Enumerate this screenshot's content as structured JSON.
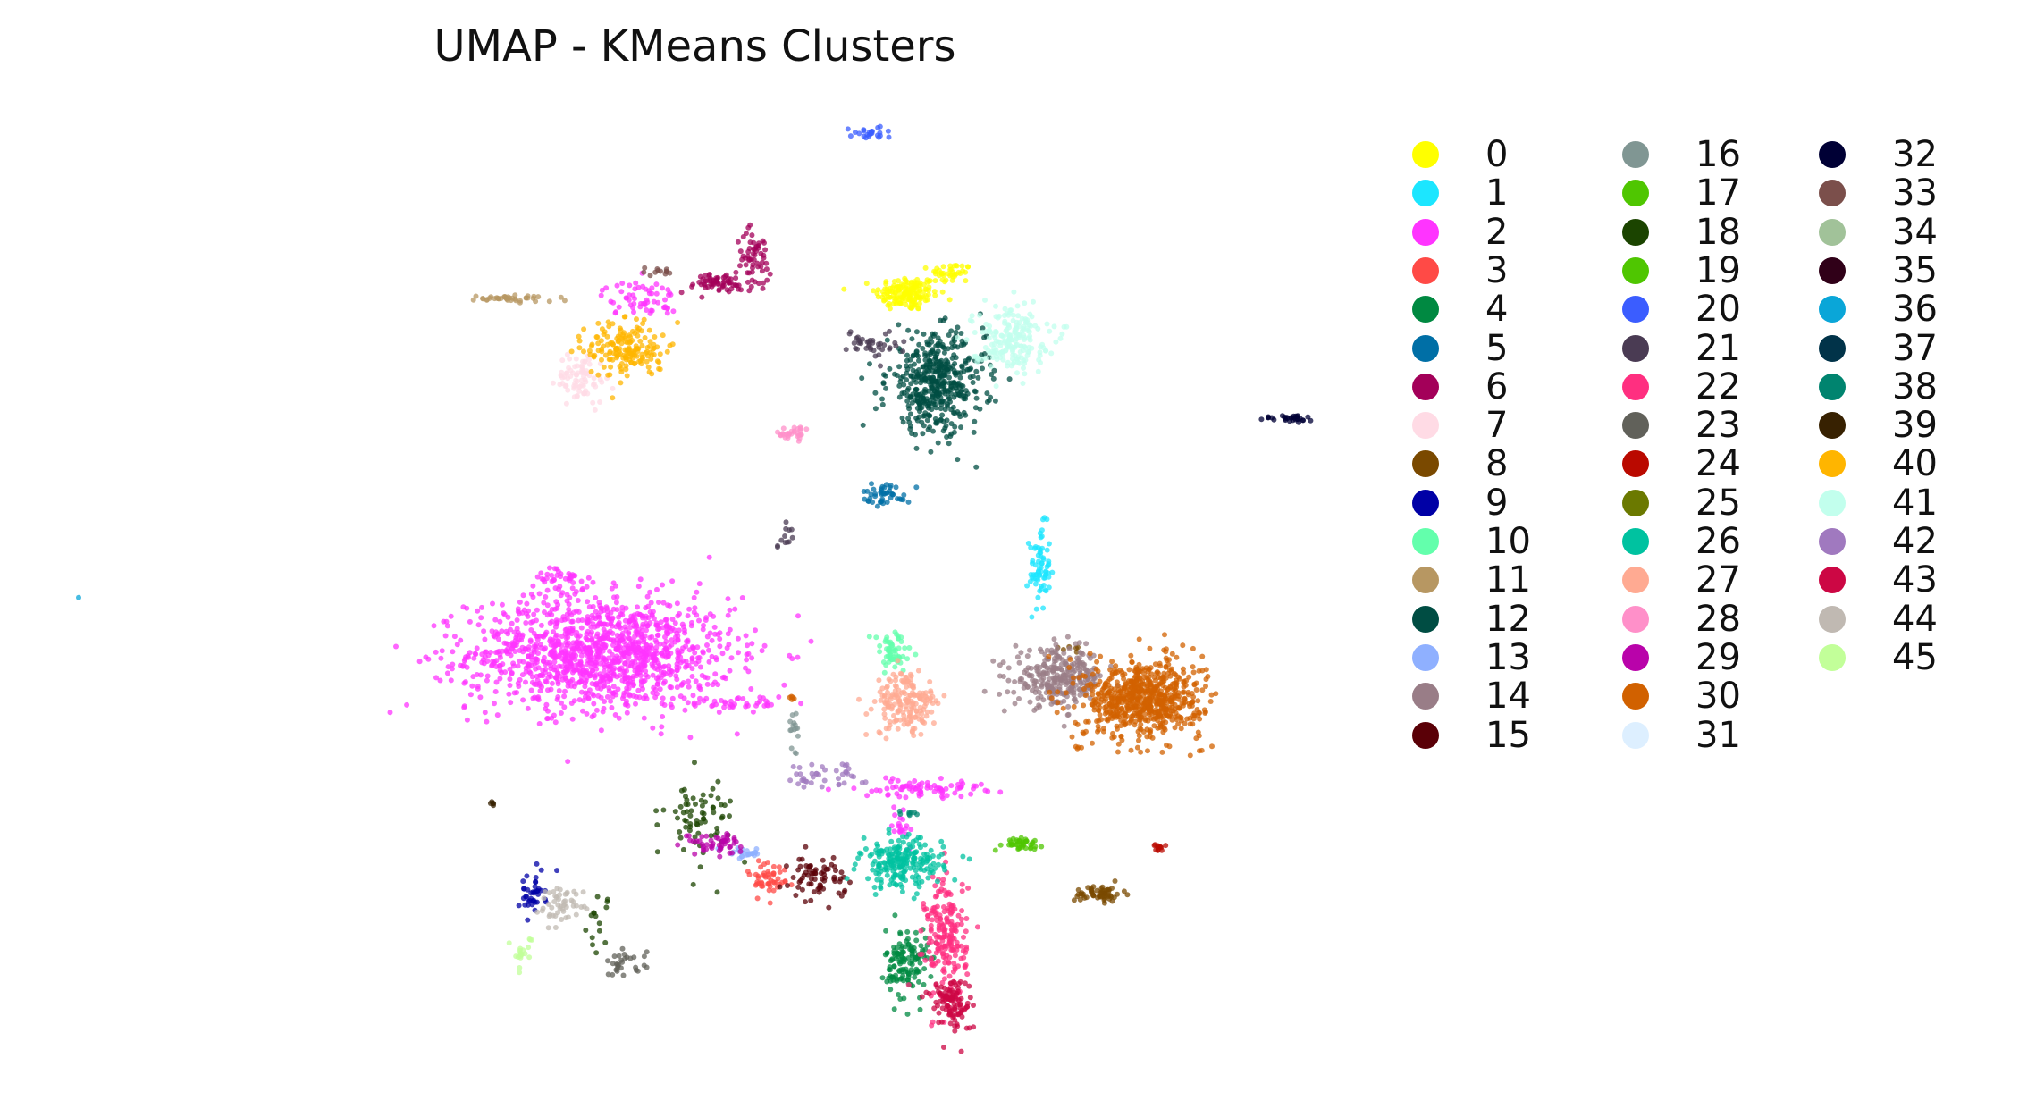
{
  "chart_data": {
    "type": "scatter",
    "title": "UMAP - KMeans Clusters",
    "xlabel": "",
    "ylabel": "",
    "axes_visible": false,
    "grid": false,
    "legend_position": "right",
    "legend_columns": 3,
    "series": [
      {
        "name": "0",
        "color": "#ffff00",
        "blobs": [
          [
            -0.2,
            6.2,
            0.45,
            0.25,
            160
          ],
          [
            0.7,
            6.6,
            0.3,
            0.15,
            40
          ]
        ]
      },
      {
        "name": "1",
        "color": "#1ce6ff",
        "blobs": [
          [
            2.5,
            0.7,
            0.15,
            0.6,
            70
          ]
        ]
      },
      {
        "name": "2",
        "color": "#ff34ff",
        "blobs": [
          [
            -6.4,
            -1.0,
            1.9,
            0.8,
            1300
          ],
          [
            -7.2,
            0.5,
            0.4,
            0.2,
            40
          ],
          [
            -3.6,
            -2.0,
            0.7,
            0.1,
            40
          ],
          [
            0.1,
            -3.7,
            0.9,
            0.12,
            80
          ],
          [
            -0.3,
            -4.4,
            0.15,
            0.3,
            20
          ],
          [
            -5.6,
            6.1,
            0.55,
            0.25,
            60
          ]
        ]
      },
      {
        "name": "3",
        "color": "#ff4a46",
        "blobs": [
          [
            -3.0,
            -5.5,
            0.3,
            0.3,
            50
          ]
        ]
      },
      {
        "name": "4",
        "color": "#008941",
        "blobs": [
          [
            -0.2,
            -7.2,
            0.3,
            0.5,
            140
          ]
        ]
      },
      {
        "name": "5",
        "color": "#006fa6",
        "blobs": [
          [
            -0.6,
            2.2,
            0.35,
            0.15,
            45
          ]
        ]
      },
      {
        "name": "6",
        "color": "#a30059",
        "blobs": [
          [
            -4.1,
            6.4,
            0.55,
            0.15,
            60
          ],
          [
            -3.3,
            6.9,
            0.25,
            0.4,
            60
          ]
        ]
      },
      {
        "name": "7",
        "color": "#ffdbe5",
        "blobs": [
          [
            -6.8,
            4.5,
            0.35,
            0.35,
            80
          ]
        ]
      },
      {
        "name": "8",
        "color": "#7a4900",
        "blobs": [
          [
            3.7,
            -5.8,
            0.35,
            0.12,
            60
          ],
          [
            3.2,
            -0.9,
            0.15,
            0.05,
            6
          ]
        ]
      },
      {
        "name": "9",
        "color": "#0000a6",
        "blobs": [
          [
            -7.8,
            -5.8,
            0.2,
            0.3,
            40
          ]
        ]
      },
      {
        "name": "10",
        "color": "#63ffac",
        "blobs": [
          [
            -0.5,
            -1.0,
            0.3,
            0.3,
            60
          ]
        ]
      },
      {
        "name": "11",
        "color": "#b79762",
        "blobs": [
          [
            -8.2,
            6.1,
            0.6,
            0.05,
            40
          ]
        ]
      },
      {
        "name": "12",
        "color": "#004d43",
        "blobs": [
          [
            0.4,
            4.4,
            0.7,
            0.7,
            450
          ]
        ]
      },
      {
        "name": "13",
        "color": "#8fb0ff",
        "blobs": [
          [
            -3.5,
            -5.0,
            0.25,
            0.08,
            25
          ]
        ]
      },
      {
        "name": "14",
        "color": "#997d87",
        "blobs": [
          [
            2.9,
            -1.5,
            0.65,
            0.4,
            300
          ]
        ]
      },
      {
        "name": "15",
        "color": "#5a0007",
        "blobs": [
          [
            -2.0,
            -5.5,
            0.4,
            0.3,
            70
          ]
        ]
      },
      {
        "name": "16",
        "color": "#809693",
        "blobs": [
          [
            -2.5,
            -2.5,
            0.08,
            0.3,
            15
          ]
        ]
      },
      {
        "name": "17",
        "color": "#4fc601",
        "blobs": []
      },
      {
        "name": "18",
        "color": "#1b4400",
        "blobs": [
          [
            -4.4,
            -4.3,
            0.5,
            0.6,
            70
          ],
          [
            -6.5,
            -6.3,
            0.2,
            0.4,
            15
          ]
        ]
      },
      {
        "name": "19",
        "color": "#4fc601",
        "blobs": [
          [
            2.1,
            -4.8,
            0.3,
            0.08,
            40
          ]
        ]
      },
      {
        "name": "20",
        "color": "#3b5dff",
        "blobs": [
          [
            -1.0,
            9.4,
            0.35,
            0.1,
            25
          ]
        ]
      },
      {
        "name": "21",
        "color": "#4a3b53",
        "blobs": [
          [
            -0.9,
            5.2,
            0.35,
            0.2,
            40
          ],
          [
            -2.6,
            1.3,
            0.15,
            0.3,
            12
          ]
        ]
      },
      {
        "name": "22",
        "color": "#ff2f80",
        "blobs": [
          [
            0.6,
            -6.7,
            0.3,
            0.9,
            200
          ]
        ]
      },
      {
        "name": "23",
        "color": "#61615a",
        "blobs": [
          [
            -5.9,
            -7.2,
            0.3,
            0.2,
            30
          ]
        ]
      },
      {
        "name": "24",
        "color": "#ba0900",
        "blobs": [
          [
            4.9,
            -4.9,
            0.12,
            0.06,
            12
          ]
        ]
      },
      {
        "name": "25",
        "color": "#6b7900",
        "blobs": []
      },
      {
        "name": "26",
        "color": "#00c2a0",
        "blobs": [
          [
            -0.3,
            -5.2,
            0.6,
            0.35,
            220
          ]
        ]
      },
      {
        "name": "27",
        "color": "#ffaa92",
        "blobs": [
          [
            -0.2,
            -2.0,
            0.45,
            0.45,
            180
          ]
        ]
      },
      {
        "name": "28",
        "color": "#ff90c9",
        "blobs": [
          [
            -2.5,
            3.4,
            0.3,
            0.1,
            30
          ]
        ]
      },
      {
        "name": "29",
        "color": "#b903aa",
        "blobs": [
          [
            -4.1,
            -4.8,
            0.4,
            0.15,
            50
          ]
        ]
      },
      {
        "name": "30",
        "color": "#d16100",
        "blobs": [
          [
            4.6,
            -1.9,
            0.85,
            0.55,
            700
          ],
          [
            -2.5,
            -1.9,
            0.05,
            0.05,
            5
          ],
          [
            3.3,
            -2.9,
            0.06,
            0.04,
            4
          ]
        ]
      },
      {
        "name": "31",
        "color": "#ddefff",
        "blobs": []
      },
      {
        "name": "32",
        "color": "#000035",
        "blobs": [
          [
            7.6,
            3.7,
            0.4,
            0.05,
            30
          ]
        ]
      },
      {
        "name": "33",
        "color": "#7b4f4b",
        "blobs": [
          [
            -5.2,
            6.6,
            0.25,
            0.1,
            12
          ]
        ]
      },
      {
        "name": "34",
        "color": "#a1c299",
        "blobs": []
      },
      {
        "name": "35",
        "color": "#300018",
        "blobs": []
      },
      {
        "name": "36",
        "color": "#0aa6d8",
        "blobs": [
          [
            -17.0,
            0.1,
            0.02,
            0.02,
            1
          ]
        ]
      },
      {
        "name": "37",
        "color": "#013349",
        "blobs": []
      },
      {
        "name": "38",
        "color": "#00846f",
        "blobs": [
          [
            -0.2,
            -4.2,
            0.15,
            0.04,
            8
          ]
        ]
      },
      {
        "name": "39",
        "color": "#372101",
        "blobs": [
          [
            -8.6,
            -4.0,
            0.05,
            0.03,
            5
          ]
        ]
      },
      {
        "name": "40",
        "color": "#ffb500",
        "blobs": [
          [
            -5.9,
            5.1,
            0.55,
            0.4,
            180
          ]
        ]
      },
      {
        "name": "41",
        "color": "#c2ffed",
        "blobs": [
          [
            1.9,
            5.3,
            0.55,
            0.45,
            200
          ]
        ]
      },
      {
        "name": "42",
        "color": "#a079bf",
        "blobs": [
          [
            -2.0,
            -3.4,
            0.6,
            0.2,
            40
          ]
        ]
      },
      {
        "name": "43",
        "color": "#cc0744",
        "blobs": [
          [
            0.7,
            -8.0,
            0.3,
            0.4,
            110
          ]
        ]
      },
      {
        "name": "44",
        "color": "#c0b9b2",
        "blobs": [
          [
            -7.2,
            -6.0,
            0.35,
            0.25,
            50
          ]
        ]
      },
      {
        "name": "45",
        "color": "#c2ff99",
        "blobs": [
          [
            -8.0,
            -7.0,
            0.15,
            0.25,
            20
          ]
        ]
      }
    ],
    "xlim": [
      -17.5,
      8.6
    ],
    "ylim": [
      -9.2,
      10.1
    ]
  }
}
